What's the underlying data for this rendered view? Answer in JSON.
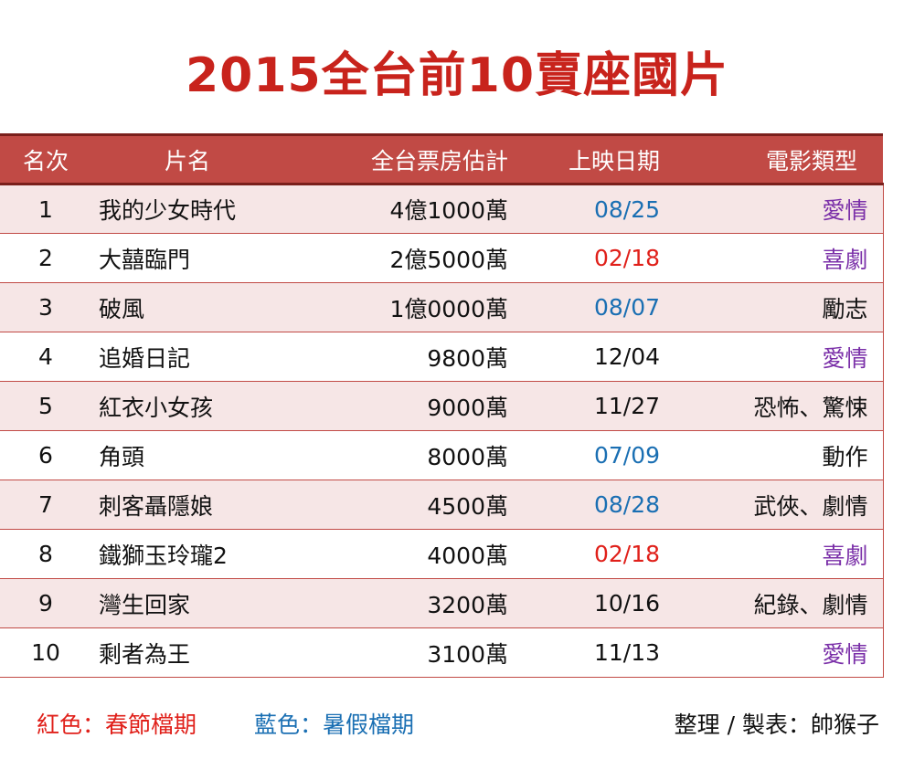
{
  "title": "2015全台前10賣座國片",
  "colors": {
    "title": "#c8231c",
    "header_bg": "#c14a45",
    "red": "#e0201a",
    "blue": "#1a6fb3",
    "purple": "#7a2fa8"
  },
  "headers": {
    "rank": "名次",
    "name": "片名",
    "box": "全台票房估計",
    "date": "上映日期",
    "genre": "電影類型"
  },
  "rows": [
    {
      "rank": "1",
      "name": "我的少女時代",
      "box": "4億1000萬",
      "date": "08/25",
      "date_color": "blue",
      "genre": "愛情",
      "genre_color": "purple"
    },
    {
      "rank": "2",
      "name": "大囍臨門",
      "box": "2億5000萬",
      "date": "02/18",
      "date_color": "red",
      "genre": "喜劇",
      "genre_color": "purple"
    },
    {
      "rank": "3",
      "name": "破風",
      "box": "1億0000萬",
      "date": "08/07",
      "date_color": "blue",
      "genre": "勵志",
      "genre_color": "black"
    },
    {
      "rank": "4",
      "name": "追婚日記",
      "box": "9800萬",
      "date": "12/04",
      "date_color": "black",
      "genre": "愛情",
      "genre_color": "purple"
    },
    {
      "rank": "5",
      "name": "紅衣小女孩",
      "box": "9000萬",
      "date": "11/27",
      "date_color": "black",
      "genre": "恐怖、驚悚",
      "genre_color": "black"
    },
    {
      "rank": "6",
      "name": "角頭",
      "box": "8000萬",
      "date": "07/09",
      "date_color": "blue",
      "genre": "動作",
      "genre_color": "black"
    },
    {
      "rank": "7",
      "name": "刺客聶隱娘",
      "box": "4500萬",
      "date": "08/28",
      "date_color": "blue",
      "genre": "武俠、劇情",
      "genre_color": "black"
    },
    {
      "rank": "8",
      "name": "鐵獅玉玲瓏2",
      "box": "4000萬",
      "date": "02/18",
      "date_color": "red",
      "genre": "喜劇",
      "genre_color": "purple"
    },
    {
      "rank": "9",
      "name": "灣生回家",
      "box": "3200萬",
      "date": "10/16",
      "date_color": "black",
      "genre": "紀錄、劇情",
      "genre_color": "black"
    },
    {
      "rank": "10",
      "name": "剩者為王",
      "box": "3100萬",
      "date": "11/13",
      "date_color": "black",
      "genre": "愛情",
      "genre_color": "purple"
    }
  ],
  "legend": {
    "red": "紅色：春節檔期",
    "blue": "藍色：暑假檔期"
  },
  "credit": "整理 / 製表：帥猴子"
}
